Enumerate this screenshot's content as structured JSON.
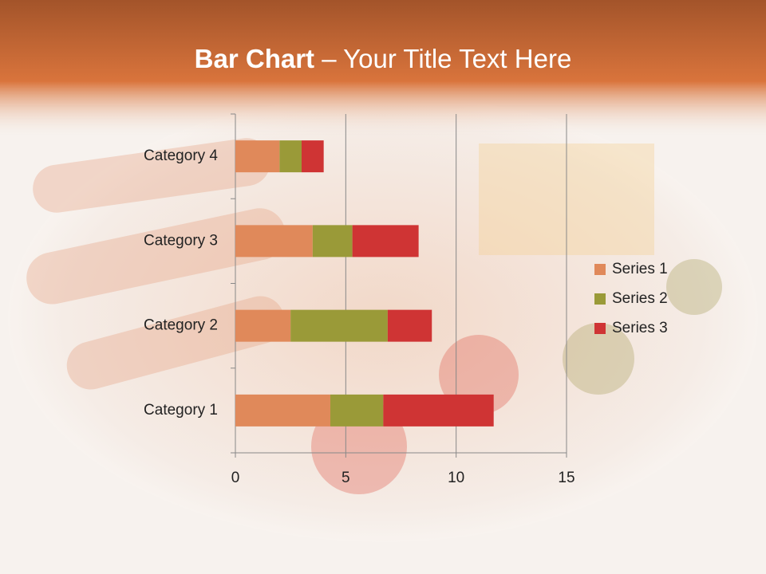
{
  "chart_data": {
    "type": "stacked-bar-horizontal",
    "title": [
      "Bar Chart",
      "– Your Title Text Here"
    ],
    "categories": [
      "Category 1",
      "Category 2",
      "Category 3",
      "Category 4"
    ],
    "series": [
      {
        "name": "Series 1",
        "color": "#e0895a",
        "values": [
          4.3,
          2.5,
          3.5,
          2
        ]
      },
      {
        "name": "Series 2",
        "color": "#9a9a38",
        "values": [
          2.4,
          4.4,
          1.8,
          1
        ]
      },
      {
        "name": "Series 3",
        "color": "#cf3434",
        "values": [
          5,
          2,
          3,
          1
        ]
      }
    ],
    "xlim": [
      0,
      15
    ],
    "xticks": [
      0,
      5,
      10,
      15
    ],
    "grid": true,
    "legend": "right"
  }
}
